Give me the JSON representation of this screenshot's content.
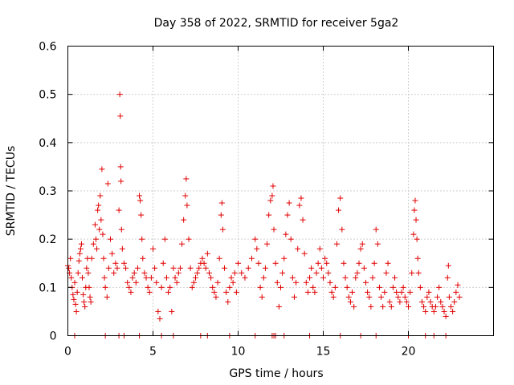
{
  "chart_data": {
    "type": "scatter",
    "title": "Day 358 of 2022, SRMTID for receiver 5ga2",
    "xlabel": "GPS time / hours",
    "ylabel": "SRMTID / TECUs",
    "xlim": [
      0,
      25
    ],
    "ylim": [
      0,
      0.6
    ],
    "x_ticks": [
      0,
      5,
      10,
      15,
      20
    ],
    "x_tick_labels": [
      "0",
      "5",
      "10",
      "15",
      "20"
    ],
    "y_ticks": [
      0,
      0.1,
      0.2,
      0.3,
      0.4,
      0.5,
      0.6
    ],
    "y_tick_labels": [
      "0",
      "0.1",
      "0.2",
      "0.3",
      "0.4",
      "0.5",
      "0.6"
    ],
    "grid": true,
    "marker": "+",
    "color": "#e00000",
    "series": [
      {
        "name": "SRMTID",
        "points": [
          [
            0.0,
            0.145
          ],
          [
            0.05,
            0.14
          ],
          [
            0.1,
            0.13
          ],
          [
            0.15,
            0.16
          ],
          [
            0.2,
            0.12
          ],
          [
            0.25,
            0.1
          ],
          [
            0.3,
            0.085
          ],
          [
            0.35,
            0.075
          ],
          [
            0.4,
            0.11
          ],
          [
            0.45,
            0.065
          ],
          [
            0.5,
            0.05
          ],
          [
            0.55,
            0.09
          ],
          [
            0.6,
            0.13
          ],
          [
            0.65,
            0.155
          ],
          [
            0.7,
            0.17
          ],
          [
            0.75,
            0.18
          ],
          [
            0.8,
            0.19
          ],
          [
            0.85,
            0.12
          ],
          [
            0.9,
            0.085
          ],
          [
            0.95,
            0.07
          ],
          [
            1.0,
            0.06
          ],
          [
            1.05,
            0.1
          ],
          [
            1.1,
            0.14
          ],
          [
            1.15,
            0.16
          ],
          [
            1.2,
            0.13
          ],
          [
            1.25,
            0.1
          ],
          [
            1.3,
            0.08
          ],
          [
            1.35,
            0.07
          ],
          [
            1.4,
            0.16
          ],
          [
            1.5,
            0.19
          ],
          [
            1.6,
            0.23
          ],
          [
            1.65,
            0.2
          ],
          [
            1.7,
            0.18
          ],
          [
            1.75,
            0.26
          ],
          [
            1.8,
            0.27
          ],
          [
            1.85,
            0.22
          ],
          [
            1.9,
            0.29
          ],
          [
            1.95,
            0.24
          ],
          [
            2.0,
            0.345
          ],
          [
            2.05,
            0.21
          ],
          [
            2.1,
            0.16
          ],
          [
            2.15,
            0.12
          ],
          [
            2.2,
            0.1
          ],
          [
            2.3,
            0.08
          ],
          [
            2.35,
            0.315
          ],
          [
            2.4,
            0.14
          ],
          [
            2.5,
            0.2
          ],
          [
            2.6,
            0.17
          ],
          [
            2.7,
            0.13
          ],
          [
            2.8,
            0.15
          ],
          [
            2.9,
            0.14
          ],
          [
            3.0,
            0.26
          ],
          [
            3.05,
            0.5
          ],
          [
            3.08,
            0.455
          ],
          [
            3.1,
            0.35
          ],
          [
            3.12,
            0.32
          ],
          [
            3.15,
            0.22
          ],
          [
            3.2,
            0.18
          ],
          [
            3.3,
            0.15
          ],
          [
            3.4,
            0.14
          ],
          [
            3.5,
            0.11
          ],
          [
            3.6,
            0.1
          ],
          [
            3.7,
            0.09
          ],
          [
            3.8,
            0.12
          ],
          [
            3.9,
            0.13
          ],
          [
            4.0,
            0.11
          ],
          [
            4.1,
            0.14
          ],
          [
            4.2,
            0.29
          ],
          [
            4.25,
            0.28
          ],
          [
            4.3,
            0.25
          ],
          [
            4.35,
            0.2
          ],
          [
            4.4,
            0.16
          ],
          [
            4.5,
            0.13
          ],
          [
            4.6,
            0.12
          ],
          [
            4.7,
            0.1
          ],
          [
            4.8,
            0.09
          ],
          [
            4.9,
            0.12
          ],
          [
            5.0,
            0.18
          ],
          [
            5.1,
            0.14
          ],
          [
            5.2,
            0.11
          ],
          [
            5.3,
            0.05
          ],
          [
            5.4,
            0.035
          ],
          [
            5.5,
            0.1
          ],
          [
            5.6,
            0.15
          ],
          [
            5.7,
            0.2
          ],
          [
            5.8,
            0.12
          ],
          [
            5.9,
            0.09
          ],
          [
            6.0,
            0.1
          ],
          [
            6.1,
            0.05
          ],
          [
            6.2,
            0.14
          ],
          [
            6.3,
            0.12
          ],
          [
            6.4,
            0.11
          ],
          [
            6.5,
            0.13
          ],
          [
            6.6,
            0.14
          ],
          [
            6.7,
            0.19
          ],
          [
            6.8,
            0.24
          ],
          [
            6.9,
            0.29
          ],
          [
            6.95,
            0.325
          ],
          [
            7.0,
            0.27
          ],
          [
            7.1,
            0.2
          ],
          [
            7.2,
            0.14
          ],
          [
            7.3,
            0.1
          ],
          [
            7.4,
            0.11
          ],
          [
            7.5,
            0.12
          ],
          [
            7.6,
            0.13
          ],
          [
            7.7,
            0.14
          ],
          [
            7.8,
            0.15
          ],
          [
            7.9,
            0.16
          ],
          [
            8.0,
            0.15
          ],
          [
            8.1,
            0.14
          ],
          [
            8.2,
            0.17
          ],
          [
            8.3,
            0.13
          ],
          [
            8.4,
            0.12
          ],
          [
            8.5,
            0.1
          ],
          [
            8.6,
            0.09
          ],
          [
            8.7,
            0.08
          ],
          [
            8.8,
            0.11
          ],
          [
            8.9,
            0.16
          ],
          [
            9.0,
            0.25
          ],
          [
            9.05,
            0.275
          ],
          [
            9.1,
            0.22
          ],
          [
            9.2,
            0.14
          ],
          [
            9.3,
            0.09
          ],
          [
            9.4,
            0.07
          ],
          [
            9.5,
            0.1
          ],
          [
            9.6,
            0.12
          ],
          [
            9.7,
            0.11
          ],
          [
            9.8,
            0.13
          ],
          [
            9.9,
            0.09
          ],
          [
            10.0,
            0.15
          ],
          [
            10.2,
            0.13
          ],
          [
            10.4,
            0.12
          ],
          [
            10.6,
            0.14
          ],
          [
            10.8,
            0.16
          ],
          [
            11.0,
            0.2
          ],
          [
            11.1,
            0.18
          ],
          [
            11.2,
            0.15
          ],
          [
            11.3,
            0.1
          ],
          [
            11.4,
            0.08
          ],
          [
            11.5,
            0.12
          ],
          [
            11.6,
            0.14
          ],
          [
            11.7,
            0.19
          ],
          [
            11.8,
            0.25
          ],
          [
            11.9,
            0.28
          ],
          [
            12.0,
            0.29
          ],
          [
            12.05,
            0.31
          ],
          [
            12.1,
            0.22
          ],
          [
            12.2,
            0.15
          ],
          [
            12.3,
            0.11
          ],
          [
            12.4,
            0.06
          ],
          [
            12.5,
            0.1
          ],
          [
            12.6,
            0.13
          ],
          [
            12.7,
            0.16
          ],
          [
            12.8,
            0.21
          ],
          [
            12.9,
            0.25
          ],
          [
            13.0,
            0.275
          ],
          [
            13.1,
            0.2
          ],
          [
            13.2,
            0.12
          ],
          [
            13.3,
            0.08
          ],
          [
            13.4,
            0.11
          ],
          [
            13.5,
            0.18
          ],
          [
            13.6,
            0.27
          ],
          [
            13.7,
            0.285
          ],
          [
            13.8,
            0.24
          ],
          [
            13.9,
            0.17
          ],
          [
            14.0,
            0.11
          ],
          [
            14.1,
            0.09
          ],
          [
            14.2,
            0.12
          ],
          [
            14.3,
            0.14
          ],
          [
            14.4,
            0.1
          ],
          [
            14.5,
            0.09
          ],
          [
            14.6,
            0.13
          ],
          [
            14.7,
            0.15
          ],
          [
            14.8,
            0.18
          ],
          [
            14.9,
            0.14
          ],
          [
            15.0,
            0.12
          ],
          [
            15.1,
            0.16
          ],
          [
            15.2,
            0.15
          ],
          [
            15.3,
            0.13
          ],
          [
            15.4,
            0.11
          ],
          [
            15.5,
            0.09
          ],
          [
            15.6,
            0.08
          ],
          [
            15.7,
            0.1
          ],
          [
            15.8,
            0.19
          ],
          [
            15.9,
            0.26
          ],
          [
            16.0,
            0.285
          ],
          [
            16.1,
            0.22
          ],
          [
            16.2,
            0.15
          ],
          [
            16.3,
            0.12
          ],
          [
            16.4,
            0.1
          ],
          [
            16.5,
            0.08
          ],
          [
            16.6,
            0.07
          ],
          [
            16.7,
            0.09
          ],
          [
            16.8,
            0.06
          ],
          [
            16.9,
            0.12
          ],
          [
            17.0,
            0.13
          ],
          [
            17.1,
            0.15
          ],
          [
            17.2,
            0.18
          ],
          [
            17.3,
            0.19
          ],
          [
            17.4,
            0.14
          ],
          [
            17.5,
            0.11
          ],
          [
            17.6,
            0.09
          ],
          [
            17.7,
            0.08
          ],
          [
            17.8,
            0.06
          ],
          [
            17.9,
            0.12
          ],
          [
            18.0,
            0.15
          ],
          [
            18.1,
            0.22
          ],
          [
            18.2,
            0.19
          ],
          [
            18.3,
            0.1
          ],
          [
            18.4,
            0.08
          ],
          [
            18.5,
            0.06
          ],
          [
            18.6,
            0.09
          ],
          [
            18.7,
            0.13
          ],
          [
            18.8,
            0.15
          ],
          [
            18.9,
            0.07
          ],
          [
            19.0,
            0.06
          ],
          [
            19.1,
            0.1
          ],
          [
            19.2,
            0.12
          ],
          [
            19.3,
            0.09
          ],
          [
            19.4,
            0.08
          ],
          [
            19.5,
            0.07
          ],
          [
            19.6,
            0.09
          ],
          [
            19.7,
            0.1
          ],
          [
            19.8,
            0.08
          ],
          [
            19.9,
            0.07
          ],
          [
            20.0,
            0.06
          ],
          [
            20.1,
            0.09
          ],
          [
            20.2,
            0.13
          ],
          [
            20.3,
            0.21
          ],
          [
            20.35,
            0.26
          ],
          [
            20.4,
            0.28
          ],
          [
            20.45,
            0.24
          ],
          [
            20.5,
            0.2
          ],
          [
            20.55,
            0.16
          ],
          [
            20.6,
            0.13
          ],
          [
            20.7,
            0.1
          ],
          [
            20.8,
            0.07
          ],
          [
            20.9,
            0.06
          ],
          [
            21.0,
            0.05
          ],
          [
            21.1,
            0.08
          ],
          [
            21.2,
            0.09
          ],
          [
            21.3,
            0.07
          ],
          [
            21.4,
            0.06
          ],
          [
            21.5,
            0.05
          ],
          [
            21.6,
            0.06
          ],
          [
            21.7,
            0.08
          ],
          [
            21.8,
            0.1
          ],
          [
            21.9,
            0.07
          ],
          [
            22.0,
            0.06
          ],
          [
            22.1,
            0.05
          ],
          [
            22.2,
            0.04
          ],
          [
            22.3,
            0.12
          ],
          [
            22.35,
            0.145
          ],
          [
            22.4,
            0.08
          ],
          [
            22.5,
            0.06
          ],
          [
            22.6,
            0.05
          ],
          [
            22.7,
            0.07
          ],
          [
            22.8,
            0.09
          ],
          [
            22.9,
            0.105
          ],
          [
            23.0,
            0.08
          ],
          [
            0.4,
            0.0
          ],
          [
            2.2,
            0.0
          ],
          [
            3.0,
            0.0
          ],
          [
            3.3,
            0.0
          ],
          [
            4.2,
            0.0
          ],
          [
            5.5,
            0.0
          ],
          [
            6.2,
            0.0
          ],
          [
            7.8,
            0.0
          ],
          [
            8.2,
            0.0
          ],
          [
            9.5,
            0.0
          ],
          [
            11.0,
            0.0
          ],
          [
            12.0,
            0.0
          ],
          [
            12.1,
            0.0
          ],
          [
            12.2,
            0.0
          ],
          [
            12.7,
            0.0
          ],
          [
            14.2,
            0.0
          ],
          [
            16.0,
            0.0
          ],
          [
            17.2,
            0.0
          ],
          [
            18.1,
            0.0
          ],
          [
            20.0,
            0.0
          ],
          [
            21.0,
            0.0
          ],
          [
            21.5,
            0.0
          ],
          [
            22.2,
            0.0
          ]
        ]
      }
    ]
  }
}
